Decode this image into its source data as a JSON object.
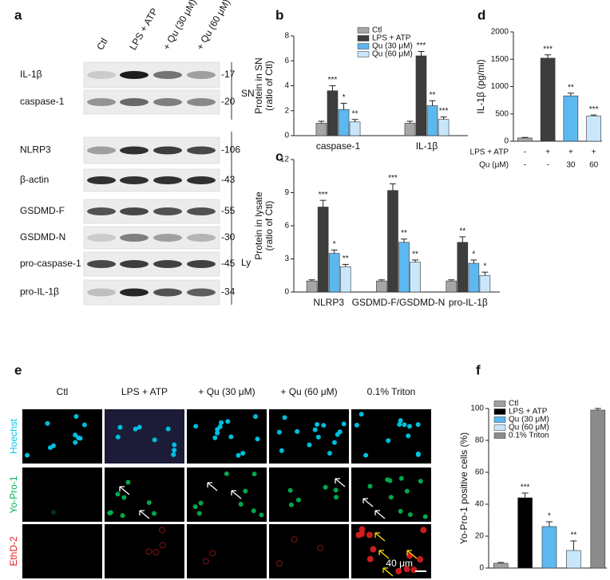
{
  "blot": {
    "panel": "a",
    "columns": [
      "Ctl",
      "LPS + ATP",
      "+ Qu (30 μM)",
      "+ Qu (60 μM)"
    ],
    "rows": [
      {
        "label": "IL-1β",
        "size": "-17"
      },
      {
        "label": "caspase-1",
        "size": "-20"
      },
      {
        "label": "NLRP3",
        "size": "-106"
      },
      {
        "label": "β-actin",
        "size": "-43"
      },
      {
        "label": "GSDMD-F",
        "size": "-55"
      },
      {
        "label": "GSDMD-N",
        "size": "-30"
      },
      {
        "label": "pro-caspase-1",
        "size": "-45"
      },
      {
        "label": "pro-IL-1β",
        "size": "-34"
      }
    ],
    "groups": [
      "SN",
      "Ly"
    ]
  },
  "imaging": {
    "panel": "e",
    "columns": [
      "Ctl",
      "LPS + ATP",
      "+ Qu (30 μM)",
      "+ Qu (60 μM)",
      "0.1% Triton"
    ],
    "rows": [
      "Hoechst",
      "Yo-Pro-1",
      "EthD-2"
    ],
    "scale_bar": "40 μm"
  },
  "chart_data": [
    {
      "panel": "b",
      "type": "bar",
      "ylabel": [
        "Protein in SN",
        "(ratio of Ctl)"
      ],
      "categories": [
        "caspase-1",
        "IL-1β"
      ],
      "series": [
        {
          "name": "Ctl",
          "color": "#a6a6a6",
          "values": [
            1,
            1
          ],
          "errors": [
            0.15,
            0.15
          ]
        },
        {
          "name": "LPS + ATP",
          "color": "#3d3d3d",
          "values": [
            3.6,
            6.4
          ],
          "errors": [
            0.4,
            0.35
          ],
          "significance": [
            "***",
            "***"
          ]
        },
        {
          "name": "Qu (30 μM)",
          "color": "#5cb8ef",
          "values": [
            2.1,
            2.4
          ],
          "errors": [
            0.5,
            0.4
          ],
          "significance": [
            "*",
            "**"
          ]
        },
        {
          "name": "Qu (60 μM)",
          "color": "#c9e7fb",
          "values": [
            1.1,
            1.3
          ],
          "errors": [
            0.2,
            0.2
          ],
          "significance": [
            "**",
            "***"
          ]
        }
      ],
      "ylim": [
        0,
        8
      ],
      "yticks": [
        0,
        2,
        4,
        6,
        8
      ],
      "legend": "top-right"
    },
    {
      "panel": "c",
      "type": "bar",
      "ylabel": [
        "Protein in lysate",
        "(ratio of Ctl)"
      ],
      "categories": [
        "NLRP3",
        "GSDMD-F/GSDMD-N",
        "pro-IL-1β"
      ],
      "series": [
        {
          "name": "Ctl",
          "color": "#a6a6a6",
          "values": [
            1,
            1,
            1
          ],
          "errors": [
            0.1,
            0.1,
            0.1
          ]
        },
        {
          "name": "LPS + ATP",
          "color": "#3d3d3d",
          "values": [
            7.7,
            9.2,
            4.5
          ],
          "errors": [
            0.6,
            0.6,
            0.5
          ],
          "significance": [
            "***",
            "***",
            "**"
          ]
        },
        {
          "name": "Qu (30 μM)",
          "color": "#5cb8ef",
          "values": [
            3.5,
            4.5,
            2.6
          ],
          "errors": [
            0.3,
            0.3,
            0.3
          ],
          "significance": [
            "*",
            "**",
            "*"
          ]
        },
        {
          "name": "Qu (60 μM)",
          "color": "#c9e7fb",
          "values": [
            2.3,
            2.7,
            1.5
          ],
          "errors": [
            0.2,
            0.2,
            0.3
          ],
          "significance": [
            "**",
            "**",
            "*"
          ]
        }
      ],
      "ylim": [
        0,
        12
      ],
      "yticks": [
        0,
        3,
        6,
        9,
        12
      ]
    },
    {
      "panel": "d",
      "type": "bar",
      "ylabel": [
        "IL-1β (pg/ml)"
      ],
      "values": [
        60,
        1520,
        830,
        460
      ],
      "errors": [
        10,
        60,
        50,
        20
      ],
      "colors": [
        "#a6a6a6",
        "#3d3d3d",
        "#5cb8ef",
        "#c9e7fb"
      ],
      "significance": [
        null,
        "***",
        "**",
        "***"
      ],
      "conditions": [
        {
          "label": "LPS + ATP",
          "values": [
            "-",
            "+",
            "+",
            "+"
          ]
        },
        {
          "label": "Qu (μM)",
          "values": [
            "-",
            "-",
            "30",
            "60"
          ]
        }
      ],
      "ylim": [
        0,
        2000
      ],
      "yticks": [
        0,
        500,
        1000,
        1500,
        2000
      ]
    },
    {
      "panel": "f",
      "type": "bar",
      "ylabel": [
        "Yo-Pro-1 positive cells (%)"
      ],
      "series": [
        {
          "name": "Ctl",
          "color": "#a0a0a0",
          "values": [
            3
          ],
          "errors": [
            0.5
          ]
        },
        {
          "name": "LPS + ATP",
          "color": "#000000",
          "values": [
            44
          ],
          "errors": [
            3
          ],
          "significance": [
            "***"
          ]
        },
        {
          "name": "Qu (30 μM)",
          "color": "#5cb8ef",
          "values": [
            26
          ],
          "errors": [
            3
          ],
          "significance": [
            "*"
          ]
        },
        {
          "name": "Qu (60 μM)",
          "color": "#c9e7fb",
          "values": [
            11
          ],
          "errors": [
            6
          ],
          "significance": [
            "**"
          ]
        },
        {
          "name": "0.1% Triton",
          "color": "#8c8c8c",
          "values": [
            99
          ],
          "errors": [
            1
          ]
        }
      ],
      "ylim": [
        0,
        100
      ],
      "yticks": [
        0,
        20,
        40,
        60,
        80,
        100
      ],
      "legend": "top-left"
    }
  ]
}
